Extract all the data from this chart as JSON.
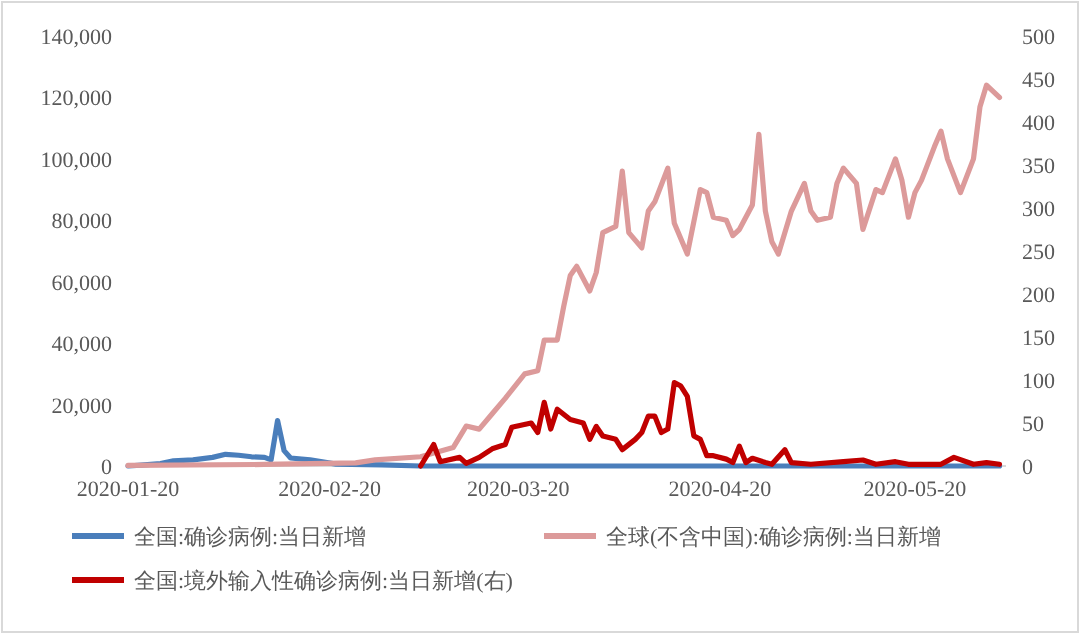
{
  "chart_data": {
    "type": "line",
    "xlim": [
      "2020-01-20",
      "2020-06-03"
    ],
    "xticks": [
      "2020-01-20",
      "2020-02-20",
      "2020-03-20",
      "2020-04-20",
      "2020-05-20"
    ],
    "ylim": [
      0,
      140000
    ],
    "yticks": [
      0,
      {
        "value": 20000,
        "label": "20,000"
      },
      {
        "value": 40000,
        "label": "40,000"
      },
      {
        "value": 60000,
        "label": "60,000"
      },
      {
        "value": 80000,
        "label": "80,000"
      },
      {
        "value": 100000,
        "label": "100,000"
      },
      {
        "value": 120000,
        "label": "120,000"
      },
      {
        "value": 140000,
        "label": "140,000"
      }
    ],
    "y2lim": [
      0,
      500
    ],
    "y2ticks": [
      0,
      50,
      100,
      150,
      200,
      250,
      300,
      350,
      400,
      450,
      500
    ],
    "grid": false,
    "legend": "bottom",
    "series": [
      {
        "name": "全国:确诊病例:当日新增",
        "color": "#4a7ebb",
        "axis": "y",
        "x": [
          "2020-01-20",
          "2020-01-22",
          "2020-01-25",
          "2020-01-27",
          "2020-01-30",
          "2020-02-02",
          "2020-02-04",
          "2020-02-06",
          "2020-02-08",
          "2020-02-10",
          "2020-02-11",
          "2020-02-12",
          "2020-02-13",
          "2020-02-14",
          "2020-02-17",
          "2020-02-21",
          "2020-02-28",
          "2020-03-05",
          "2020-03-15",
          "2020-04-01",
          "2020-05-01",
          "2020-06-02"
        ],
        "values": [
          0,
          300,
          800,
          1700,
          2000,
          2800,
          3800,
          3500,
          3000,
          2800,
          2000,
          14800,
          5000,
          2600,
          2000,
          600,
          400,
          0,
          0,
          0,
          0,
          0
        ]
      },
      {
        "name": "全球(不含中国):确诊病例:当日新增",
        "color": "#dc9a9a",
        "axis": "y",
        "x": [
          "2020-01-20",
          "2020-02-10",
          "2020-02-24",
          "2020-02-27",
          "2020-03-05",
          "2020-03-10",
          "2020-03-12",
          "2020-03-14",
          "2020-03-16",
          "2020-03-18",
          "2020-03-21",
          "2020-03-23",
          "2020-03-24",
          "2020-03-26",
          "2020-03-27",
          "2020-03-28",
          "2020-03-29",
          "2020-03-31",
          "2020-04-01",
          "2020-04-02",
          "2020-04-04",
          "2020-04-05",
          "2020-04-06",
          "2020-04-08",
          "2020-04-09",
          "2020-04-10",
          "2020-04-12",
          "2020-04-13",
          "2020-04-15",
          "2020-04-17",
          "2020-04-18",
          "2020-04-19",
          "2020-04-21",
          "2020-04-22",
          "2020-04-23",
          "2020-04-25",
          "2020-04-26",
          "2020-04-27",
          "2020-04-28",
          "2020-04-29",
          "2020-05-01",
          "2020-05-03",
          "2020-05-04",
          "2020-05-05",
          "2020-05-07",
          "2020-05-08",
          "2020-05-09",
          "2020-05-11",
          "2020-05-12",
          "2020-05-14",
          "2020-05-15",
          "2020-05-17",
          "2020-05-18",
          "2020-05-19",
          "2020-05-20",
          "2020-05-21",
          "2020-05-23",
          "2020-05-24",
          "2020-05-25",
          "2020-05-27",
          "2020-05-29",
          "2020-05-30",
          "2020-05-31",
          "2020-06-02"
        ],
        "values": [
          200,
          500,
          1000,
          2000,
          3000,
          6000,
          13000,
          12000,
          17000,
          22000,
          30000,
          31000,
          41000,
          41000,
          52000,
          62000,
          65000,
          57000,
          63000,
          76000,
          78000,
          96000,
          76000,
          71000,
          83000,
          86000,
          97000,
          79000,
          69000,
          90000,
          89000,
          81000,
          80000,
          75000,
          77000,
          85000,
          108000,
          83000,
          73000,
          69000,
          83000,
          92000,
          83000,
          80000,
          81000,
          92000,
          97000,
          92000,
          77000,
          90000,
          89000,
          100000,
          93000,
          81000,
          89000,
          93000,
          104000,
          109000,
          100000,
          89000,
          100000,
          117000,
          124000,
          120000
        ]
      },
      {
        "name": "全国:境外输入性确诊病例:当日新增(右)",
        "color": "#c00000",
        "axis": "y2",
        "x": [
          "2020-03-05",
          "2020-03-07",
          "2020-03-08",
          "2020-03-11",
          "2020-03-12",
          "2020-03-14",
          "2020-03-16",
          "2020-03-18",
          "2020-03-19",
          "2020-03-22",
          "2020-03-23",
          "2020-03-24",
          "2020-03-25",
          "2020-03-26",
          "2020-03-28",
          "2020-03-30",
          "2020-03-31",
          "2020-04-01",
          "2020-04-02",
          "2020-04-04",
          "2020-04-05",
          "2020-04-07",
          "2020-04-08",
          "2020-04-09",
          "2020-04-10",
          "2020-04-11",
          "2020-04-12",
          "2020-04-13",
          "2020-04-14",
          "2020-04-15",
          "2020-04-16",
          "2020-04-17",
          "2020-04-18",
          "2020-04-19",
          "2020-04-21",
          "2020-04-22",
          "2020-04-23",
          "2020-04-24",
          "2020-04-25",
          "2020-04-27",
          "2020-04-28",
          "2020-04-30",
          "2020-05-01",
          "2020-05-04",
          "2020-05-09",
          "2020-05-12",
          "2020-05-14",
          "2020-05-17",
          "2020-05-19",
          "2020-05-24",
          "2020-05-26",
          "2020-05-29",
          "2020-05-31",
          "2020-06-02"
        ],
        "values": [
          0,
          25,
          5,
          10,
          3,
          10,
          20,
          25,
          45,
          50,
          39,
          74,
          43,
          66,
          54,
          50,
          31,
          46,
          35,
          31,
          19,
          31,
          39,
          58,
          58,
          39,
          43,
          97,
          93,
          81,
          35,
          31,
          12,
          12,
          8,
          4,
          23,
          4,
          9,
          4,
          2,
          19,
          4,
          2,
          5,
          7,
          2,
          5,
          2,
          2,
          10,
          2,
          4,
          2
        ]
      }
    ]
  }
}
